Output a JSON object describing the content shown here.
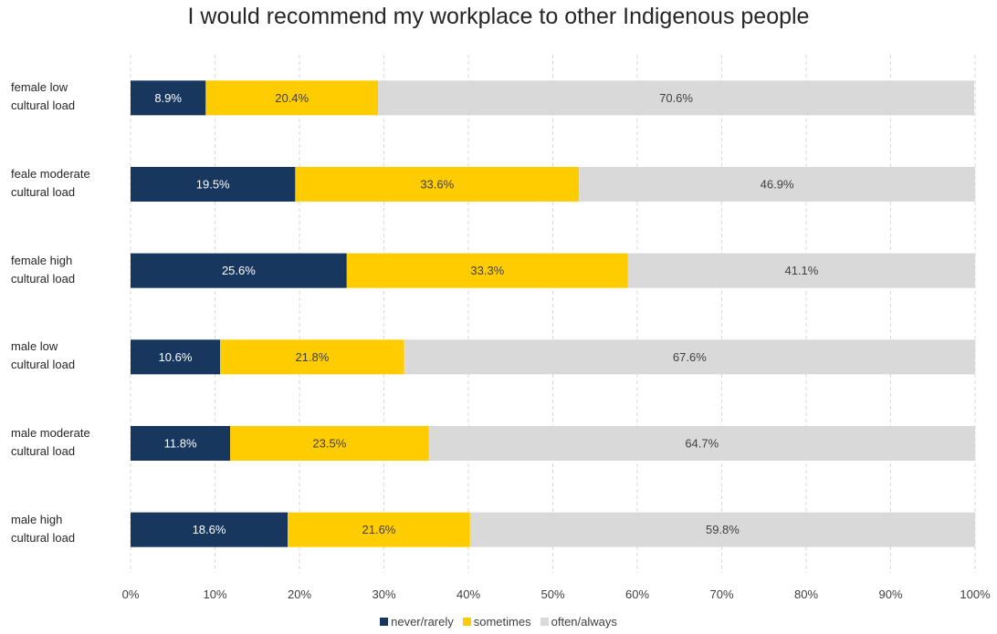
{
  "chart_data": {
    "type": "bar",
    "orientation": "horizontal",
    "stacked": true,
    "title": "I would recommend my workplace to other Indigenous people",
    "categories": [
      [
        "female low",
        "cultural load"
      ],
      [
        "feale moderate",
        "cultural load"
      ],
      [
        "female high",
        "cultural load"
      ],
      [
        "male low",
        "cultural load"
      ],
      [
        "male moderate",
        "cultural load"
      ],
      [
        "male high",
        "cultural load"
      ]
    ],
    "series": [
      {
        "name": "never/rarely",
        "color": "#17375e",
        "label_color": "#ffffff",
        "values": [
          8.9,
          19.5,
          25.6,
          10.6,
          11.8,
          18.6
        ]
      },
      {
        "name": "sometimes",
        "color": "#ffcc00",
        "label_color": "#404040",
        "values": [
          20.4,
          33.6,
          33.3,
          21.8,
          23.5,
          21.6
        ]
      },
      {
        "name": "often/always",
        "color": "#d9d9d9",
        "label_color": "#404040",
        "values": [
          70.6,
          46.9,
          41.1,
          67.6,
          64.7,
          59.8
        ]
      }
    ],
    "xlim": [
      0,
      100
    ],
    "x_ticks": [
      "0%",
      "10%",
      "20%",
      "30%",
      "40%",
      "50%",
      "60%",
      "70%",
      "80%",
      "90%",
      "100%"
    ],
    "grid": true,
    "legend_position": "bottom"
  }
}
